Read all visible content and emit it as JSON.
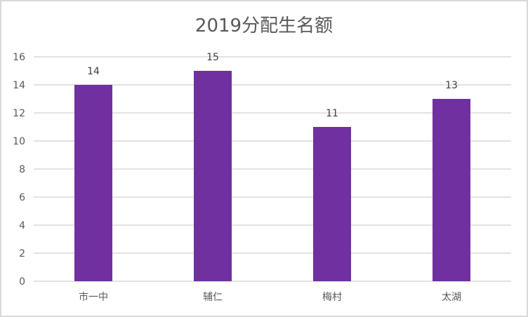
{
  "chart_data": {
    "type": "bar",
    "title": "2019分配生名额",
    "categories": [
      "市一中",
      "辅仁",
      "梅村",
      "太湖"
    ],
    "values": [
      14,
      15,
      11,
      13
    ],
    "data_labels": [
      "14",
      "15",
      "11",
      "13"
    ],
    "xlabel": "",
    "ylabel": "",
    "ylim": [
      0,
      16
    ],
    "yticks": [
      0,
      2,
      4,
      6,
      8,
      10,
      12,
      14,
      16
    ],
    "grid": true,
    "legend": "none",
    "bar_color": "#7030A0",
    "grid_color": "#d9d9d9"
  }
}
